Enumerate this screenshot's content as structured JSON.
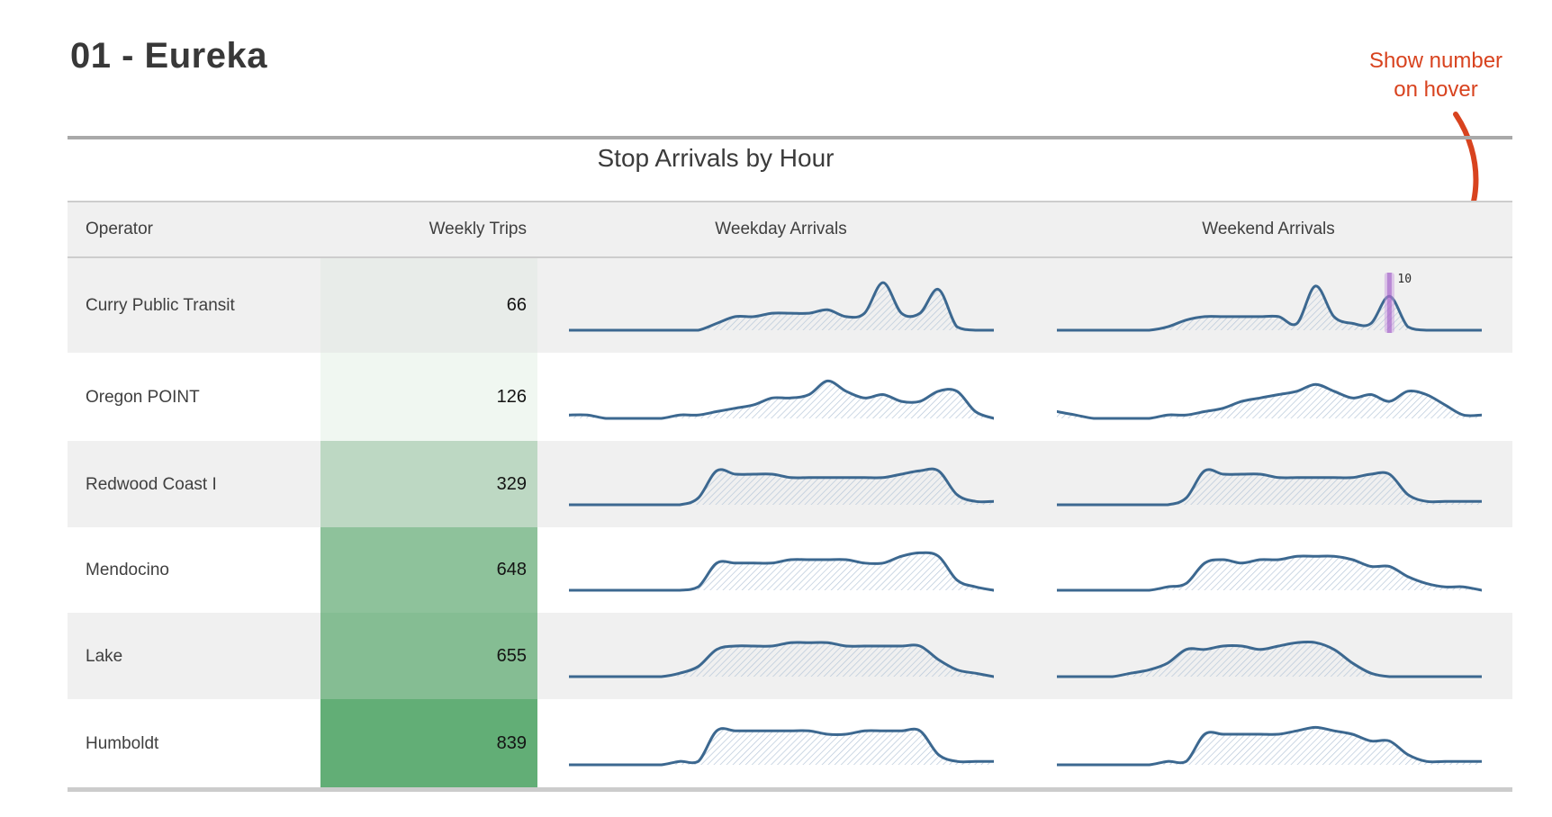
{
  "page": {
    "title": "01 - Eureka"
  },
  "annotation": {
    "line1": "Show number",
    "line2": "on hover",
    "color": "#d8431f"
  },
  "table": {
    "title": "Stop Arrivals by Hour",
    "columns": [
      "Operator",
      "Weekly Trips",
      "Weekday Arrivals",
      "Weekend Arrivals"
    ],
    "rows": [
      {
        "operator": "Curry Public Transit",
        "weekly_trips": "66",
        "trips_cell_color": "rgba(97,174,118,0.05)"
      },
      {
        "operator": "Oregon POINT",
        "weekly_trips": "126",
        "trips_cell_color": "#f0f7f1"
      },
      {
        "operator": "Redwood Coast I",
        "weekly_trips": "329",
        "trips_cell_color": "#bdd8c3"
      },
      {
        "operator": "Mendocino",
        "weekly_trips": "648",
        "trips_cell_color": "#8ec29b"
      },
      {
        "operator": "Lake",
        "weekly_trips": "655",
        "trips_cell_color": "#85bd93"
      },
      {
        "operator": "Humboldt",
        "weekly_trips": "839",
        "trips_cell_color": "#62ae76"
      }
    ]
  },
  "hover": {
    "operator": "Curry Public Transit",
    "chart": "weekend",
    "hour": 18,
    "value": "10"
  },
  "colors": {
    "spark_stroke": "#3c6890",
    "spark_hatch": "#b7c7d9",
    "row_alt_bg": "#f0f0f0",
    "annotation_red": "#d8431f",
    "hover_bar_outer": "rgba(199,154,224,0.5)",
    "hover_bar_inner": "rgba(155,85,195,0.55)",
    "rule_top": "#a9a9a9",
    "rule_bottom": "#cccccc"
  },
  "chart_data": [
    {
      "type": "area",
      "operator": "Curry Public Transit",
      "x": "hour of day (0-23)",
      "x_range": [
        0,
        23
      ],
      "weekday_values": [
        0,
        0,
        0,
        0,
        0,
        0,
        0,
        0,
        2,
        4,
        4,
        5,
        5,
        5,
        6,
        4,
        5,
        14,
        5,
        5,
        12,
        1,
        0,
        0
      ],
      "weekend_values": [
        0,
        0,
        0,
        0,
        0,
        0,
        1,
        3,
        4,
        4,
        4,
        4,
        4,
        2,
        13,
        4,
        2,
        2,
        10,
        1,
        0,
        0,
        0,
        0
      ]
    },
    {
      "type": "area",
      "operator": "Oregon POINT",
      "x": "hour of day (0-23)",
      "x_range": [
        0,
        23
      ],
      "weekday_values": [
        1,
        1,
        0,
        0,
        0,
        0,
        1,
        1,
        2,
        3,
        4,
        6,
        6,
        7,
        11,
        8,
        6,
        7,
        5,
        5,
        8,
        8,
        2,
        0
      ],
      "weekend_values": [
        2,
        1,
        0,
        0,
        0,
        0,
        1,
        1,
        2,
        3,
        5,
        6,
        7,
        8,
        10,
        8,
        6,
        7,
        5,
        8,
        7,
        4,
        1,
        1
      ]
    },
    {
      "type": "area",
      "operator": "Redwood Coast I",
      "x": "hour of day (0-23)",
      "x_range": [
        0,
        23
      ],
      "weekday_values": [
        0,
        0,
        0,
        0,
        0,
        0,
        0,
        2,
        10,
        9,
        9,
        9,
        8,
        8,
        8,
        8,
        8,
        8,
        9,
        10,
        10,
        3,
        1,
        1
      ],
      "weekend_values": [
        0,
        0,
        0,
        0,
        0,
        0,
        0,
        2,
        10,
        9,
        9,
        9,
        8,
        8,
        8,
        8,
        8,
        9,
        9,
        3,
        1,
        1,
        1,
        1
      ]
    },
    {
      "type": "area",
      "operator": "Mendocino",
      "x": "hour of day (0-23)",
      "x_range": [
        0,
        23
      ],
      "weekday_values": [
        0,
        0,
        0,
        0,
        0,
        0,
        0,
        1,
        8,
        8,
        8,
        8,
        9,
        9,
        9,
        9,
        8,
        8,
        10,
        11,
        10,
        3,
        1,
        0
      ],
      "weekend_values": [
        0,
        0,
        0,
        0,
        0,
        0,
        1,
        2,
        8,
        9,
        8,
        9,
        9,
        10,
        10,
        10,
        9,
        7,
        7,
        4,
        2,
        1,
        1,
        0
      ]
    },
    {
      "type": "area",
      "operator": "Lake",
      "x": "hour of day (0-23)",
      "x_range": [
        0,
        23
      ],
      "weekday_values": [
        0,
        0,
        0,
        0,
        0,
        0,
        1,
        3,
        8,
        9,
        9,
        9,
        10,
        10,
        10,
        9,
        9,
        9,
        9,
        9,
        5,
        2,
        1,
        0
      ],
      "weekend_values": [
        0,
        0,
        0,
        0,
        1,
        2,
        4,
        8,
        8,
        9,
        9,
        8,
        9,
        10,
        10,
        8,
        4,
        1,
        0,
        0,
        0,
        0,
        0,
        0
      ]
    },
    {
      "type": "area",
      "operator": "Humboldt",
      "x": "hour of day (0-23)",
      "x_range": [
        0,
        23
      ],
      "weekday_values": [
        0,
        0,
        0,
        0,
        0,
        0,
        1,
        1,
        10,
        10,
        10,
        10,
        10,
        10,
        9,
        9,
        10,
        10,
        10,
        10,
        3,
        1,
        1,
        1
      ],
      "weekend_values": [
        0,
        0,
        0,
        0,
        0,
        0,
        1,
        1,
        9,
        9,
        9,
        9,
        9,
        10,
        11,
        10,
        9,
        7,
        7,
        3,
        1,
        1,
        1,
        1
      ]
    }
  ]
}
